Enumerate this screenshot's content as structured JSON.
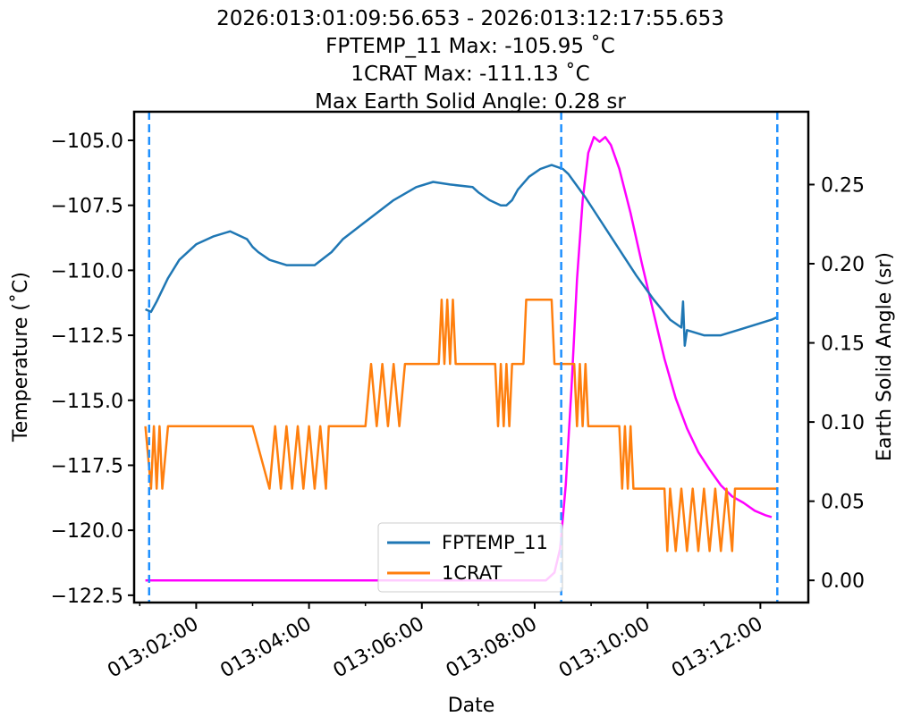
{
  "chart_data": {
    "type": "line",
    "title_lines": [
      "2026:013:01:09:56.653 - 2026:013:12:17:55.653",
      "FPTEMP_11 Max: -105.95 ˚C",
      "1CRAT Max: -111.13 ˚C",
      "Max Earth Solid Angle: 0.28 sr"
    ],
    "xlabel": "Date",
    "ylabel": "Temperature (˚C)",
    "y2label": "Earth Solid Angle (sr)",
    "x_tick_labels": [
      "013:02:00",
      "013:04:00",
      "013:06:00",
      "013:08:00",
      "013:10:00",
      "013:12:00"
    ],
    "x_tick_hours": [
      2,
      4,
      6,
      8,
      10,
      12
    ],
    "xlim_hours": [
      0.9,
      12.85
    ],
    "y_ticks": [
      -105.0,
      -107.5,
      -110.0,
      -112.5,
      -115.0,
      -117.5,
      -120.0,
      -122.5
    ],
    "y_tick_labels": [
      "−105.0",
      "−107.5",
      "−110.0",
      "−112.5",
      "−115.0",
      "−117.5",
      "−120.0",
      "−122.5"
    ],
    "ylim": [
      -122.78,
      -103.9
    ],
    "y2_ticks": [
      0.0,
      0.05,
      0.1,
      0.15,
      0.2,
      0.25
    ],
    "y2_tick_labels": [
      "0.00",
      "0.05",
      "0.10",
      "0.15",
      "0.20",
      "0.25"
    ],
    "y2lim": [
      -0.014,
      0.296
    ],
    "vlines_hours": [
      1.166,
      8.47,
      12.3
    ],
    "legend_position": "lower center",
    "grid": false,
    "colors": {
      "FPTEMP_11": "#1f77b4",
      "1CRAT": "#ff7f0e",
      "earth_solid_angle": "#ff00ff",
      "vlines": "#1e90ff"
    },
    "series": [
      {
        "name": "FPTEMP_11",
        "axis": "left",
        "x": [
          1.1,
          1.2,
          1.3,
          1.5,
          1.7,
          2.0,
          2.3,
          2.6,
          2.9,
          3.0,
          3.1,
          3.3,
          3.6,
          3.9,
          4.1,
          4.4,
          4.6,
          4.9,
          5.2,
          5.5,
          5.9,
          6.2,
          6.5,
          6.9,
          7.0,
          7.2,
          7.4,
          7.5,
          7.6,
          7.7,
          7.9,
          8.1,
          8.3,
          8.5,
          8.6,
          8.9,
          9.2,
          9.5,
          9.8,
          10.1,
          10.4,
          10.6,
          10.63,
          10.66,
          10.7,
          11.0,
          11.3,
          11.6,
          11.9,
          12.2,
          12.3
        ],
        "y": [
          -111.5,
          -111.6,
          -111.2,
          -110.3,
          -109.6,
          -109.0,
          -108.7,
          -108.5,
          -108.8,
          -109.1,
          -109.3,
          -109.6,
          -109.8,
          -109.8,
          -109.8,
          -109.3,
          -108.8,
          -108.3,
          -107.8,
          -107.3,
          -106.8,
          -106.6,
          -106.7,
          -106.8,
          -107.0,
          -107.3,
          -107.5,
          -107.5,
          -107.3,
          -106.9,
          -106.4,
          -106.1,
          -105.95,
          -106.1,
          -106.3,
          -107.2,
          -108.2,
          -109.2,
          -110.2,
          -111.1,
          -111.9,
          -112.2,
          -111.2,
          -112.9,
          -112.3,
          -112.5,
          -112.5,
          -112.3,
          -112.1,
          -111.9,
          -111.8
        ]
      },
      {
        "name": "1CRAT",
        "axis": "left",
        "x": [
          1.1,
          1.2,
          1.25,
          1.3,
          1.35,
          1.4,
          1.5,
          3.0,
          3.3,
          3.4,
          3.5,
          3.6,
          3.7,
          3.8,
          3.9,
          4.0,
          4.1,
          4.2,
          4.3,
          4.35,
          4.4,
          5.0,
          5.1,
          5.2,
          5.3,
          5.4,
          5.5,
          5.6,
          5.7,
          6.3,
          6.35,
          6.4,
          6.45,
          6.5,
          6.55,
          6.6,
          7.3,
          7.35,
          7.4,
          7.45,
          7.5,
          7.55,
          7.6,
          7.8,
          7.85,
          8.3,
          8.35,
          8.7,
          8.75,
          8.8,
          8.85,
          8.9,
          8.95,
          9.0,
          9.5,
          9.55,
          9.6,
          9.65,
          9.7,
          9.75,
          9.8,
          10.3,
          10.35,
          10.4,
          10.5,
          10.6,
          10.7,
          10.8,
          10.9,
          11.0,
          11.1,
          11.2,
          11.3,
          11.4,
          11.5,
          11.55,
          11.6,
          12.3
        ],
        "y": [
          -116.0,
          -118.4,
          -116.0,
          -118.4,
          -116.0,
          -118.4,
          -116.0,
          -116.0,
          -118.4,
          -116.0,
          -118.4,
          -116.0,
          -118.4,
          -116.0,
          -118.4,
          -116.0,
          -118.4,
          -116.0,
          -118.4,
          -116.0,
          -116.0,
          -116.0,
          -113.6,
          -116.0,
          -113.6,
          -116.0,
          -113.6,
          -116.0,
          -113.6,
          -113.6,
          -111.13,
          -113.6,
          -111.13,
          -113.6,
          -111.13,
          -113.6,
          -113.6,
          -116.0,
          -113.6,
          -116.0,
          -113.6,
          -116.0,
          -113.6,
          -113.6,
          -111.13,
          -111.13,
          -113.6,
          -113.6,
          -116.0,
          -113.6,
          -116.0,
          -113.6,
          -116.0,
          -116.0,
          -116.0,
          -118.4,
          -116.0,
          -118.4,
          -116.0,
          -118.4,
          -118.4,
          -118.4,
          -120.8,
          -118.4,
          -120.8,
          -118.4,
          -120.8,
          -118.4,
          -120.8,
          -118.4,
          -120.8,
          -118.4,
          -120.8,
          -118.4,
          -120.8,
          -118.4,
          -118.4,
          -118.4
        ]
      },
      {
        "name": "Earth Solid Angle",
        "axis": "right",
        "x": [
          1.1,
          8.2,
          8.35,
          8.45,
          8.55,
          8.65,
          8.75,
          8.85,
          8.95,
          9.05,
          9.15,
          9.25,
          9.35,
          9.5,
          9.7,
          9.9,
          10.1,
          10.3,
          10.5,
          10.7,
          10.9,
          11.1,
          11.3,
          11.5,
          11.7,
          11.9,
          12.1,
          12.2
        ],
        "y": [
          0.0,
          0.0,
          0.005,
          0.02,
          0.06,
          0.12,
          0.19,
          0.24,
          0.27,
          0.28,
          0.277,
          0.28,
          0.275,
          0.26,
          0.232,
          0.2,
          0.17,
          0.14,
          0.115,
          0.096,
          0.081,
          0.07,
          0.06,
          0.053,
          0.049,
          0.044,
          0.041,
          0.04
        ]
      }
    ]
  }
}
